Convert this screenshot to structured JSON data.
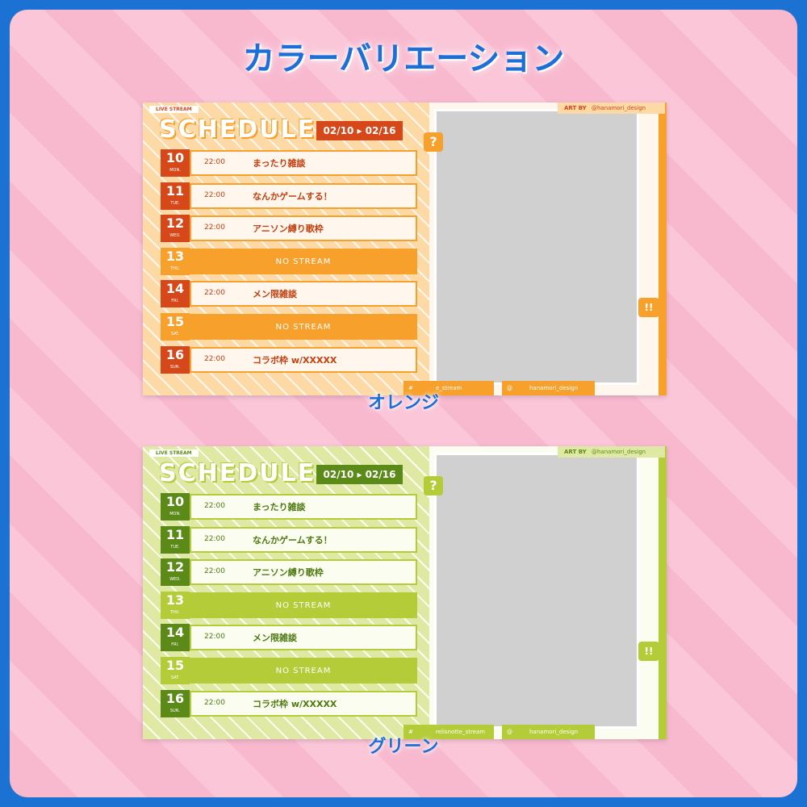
{
  "title": "カラーバリエーション",
  "variants": [
    {
      "label": "オレンジ",
      "theme": {
        "bg": "#fdd9a6",
        "accent": "#f7a12c",
        "dark": "#d6471a",
        "row": "#fff6ee",
        "text": "#c4400f"
      },
      "live": "LIVE STREAM",
      "schedule": "SCHEDULE",
      "date_range": "02/10 ▸ 02/16",
      "art_by": "ART BY",
      "artist": "@hanamori_design",
      "hashtag_mark": "#",
      "hashtag": "e_stream",
      "at_mark": "@",
      "handle": "hanamori_design",
      "question": "?",
      "exclaim": "!!",
      "days": [
        {
          "day": "10",
          "weekday": "MON.",
          "time": "22:00",
          "title": "まったり雑談"
        },
        {
          "day": "11",
          "weekday": "TUE.",
          "time": "22:00",
          "title": "なんかゲームする！"
        },
        {
          "day": "12",
          "weekday": "WED.",
          "time": "22:00",
          "title": "アニソン縛り歌枠"
        },
        {
          "day": "13",
          "weekday": "THU.",
          "title": "NO STREAM"
        },
        {
          "day": "14",
          "weekday": "FRI.",
          "time": "22:00",
          "title": "メン限雑談"
        },
        {
          "day": "15",
          "weekday": "SAT.",
          "title": "NO STREAM"
        },
        {
          "day": "16",
          "weekday": "SUN.",
          "time": "22:00",
          "title": "コラボ枠 w/XXXXX"
        }
      ]
    },
    {
      "label": "グリーン",
      "theme": {
        "bg": "#dfe9a4",
        "accent": "#b3cc38",
        "dark": "#5c8a19",
        "row": "#fbfdf0",
        "text": "#4f7a12"
      },
      "live": "LIVE STREAM",
      "schedule": "SCHEDULE",
      "date_range": "02/10 ▸ 02/16",
      "art_by": "ART BY",
      "artist": "@hanamori_design",
      "hashtag_mark": "#",
      "hashtag": "relisnotte_stream",
      "at_mark": "@",
      "handle": "hanamori_design",
      "question": "?",
      "exclaim": "!!",
      "days": [
        {
          "day": "10",
          "weekday": "MON.",
          "time": "22:00",
          "title": "まったり雑談"
        },
        {
          "day": "11",
          "weekday": "TUE.",
          "time": "22:00",
          "title": "なんかゲームする！"
        },
        {
          "day": "12",
          "weekday": "WED.",
          "time": "22:00",
          "title": "アニソン縛り歌枠"
        },
        {
          "day": "13",
          "weekday": "THU.",
          "title": "NO STREAM"
        },
        {
          "day": "14",
          "weekday": "FRI.",
          "time": "22:00",
          "title": "メン限雑談"
        },
        {
          "day": "15",
          "weekday": "SAT.",
          "title": "NO STREAM"
        },
        {
          "day": "16",
          "weekday": "SUN.",
          "time": "22:00",
          "title": "コラボ枠 w/XXXXX"
        }
      ]
    }
  ]
}
